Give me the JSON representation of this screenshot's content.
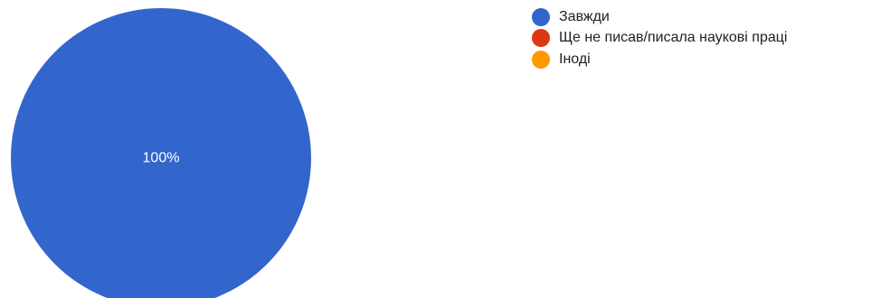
{
  "chart_data": {
    "type": "pie",
    "categories": [
      "Завжди",
      "Ще не писав/писала наукові праці",
      "Іноді"
    ],
    "values": [
      100,
      0,
      0
    ],
    "slice_labels": [
      "100%",
      "",
      ""
    ],
    "colors": [
      "#3366cc",
      "#dc3912",
      "#ff9900"
    ],
    "legend_position": "right"
  }
}
